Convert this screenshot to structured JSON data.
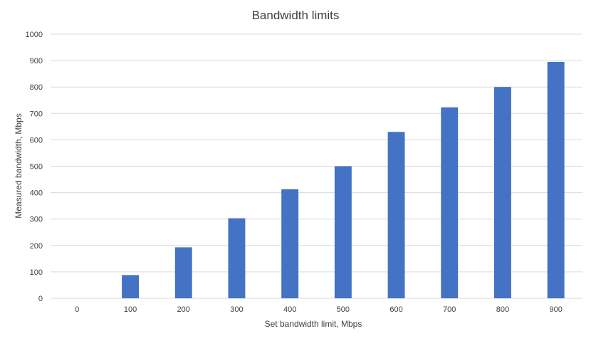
{
  "chart_data": {
    "type": "bar",
    "title": "Bandwidth limits",
    "xlabel": "Set bandwidth limit, Mbps",
    "ylabel": "Measured bandwidth, Mbps",
    "categories": [
      "0",
      "100",
      "200",
      "300",
      "400",
      "500",
      "600",
      "700",
      "800",
      "900"
    ],
    "values": [
      0,
      88,
      193,
      303,
      413,
      500,
      630,
      723,
      800,
      895
    ],
    "ylim": [
      0,
      1000
    ],
    "yticks": [
      "0",
      "100",
      "200",
      "300",
      "400",
      "500",
      "600",
      "700",
      "800",
      "900",
      "1000"
    ],
    "grid": true,
    "legend": "none",
    "bar_color": "#4472c4"
  }
}
